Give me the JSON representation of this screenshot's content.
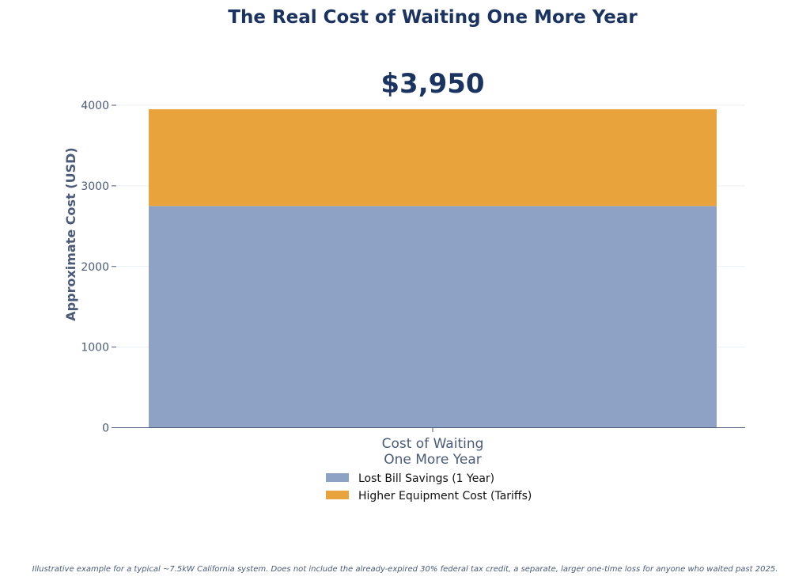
{
  "chart_data": {
    "type": "bar",
    "stacked": true,
    "title": "The Real Cost of Waiting One More Year",
    "total_label": "$3,950",
    "categories": [
      "Cost of Waiting One More Year"
    ],
    "category_label_lines": [
      "Cost of Waiting",
      "One More Year"
    ],
    "series": [
      {
        "name": "Lost Bill Savings (1 Year)",
        "values": [
          2750
        ],
        "color": "#8da2c4"
      },
      {
        "name": "Higher Equipment Cost (Tariffs)",
        "values": [
          1200
        ],
        "color": "#e8a33c"
      }
    ],
    "ylabel": "Approximate Cost (USD)",
    "xlabel": "",
    "ylim": [
      0,
      4000
    ],
    "yticks": [
      0,
      1000,
      2000,
      3000,
      4000
    ],
    "grid": true,
    "legend_position": "bottom-center"
  },
  "footnote": "Illustrative example for a typical ~7.5kW California system. Does not include the already-expired 30% federal tax credit, a separate, larger one-time loss for anyone who waited past 2025.",
  "colors": {
    "title": "#1a3360",
    "axis_text": "#4a5a78",
    "grid": "#eceff3",
    "axis_line": "#4a5a78"
  }
}
